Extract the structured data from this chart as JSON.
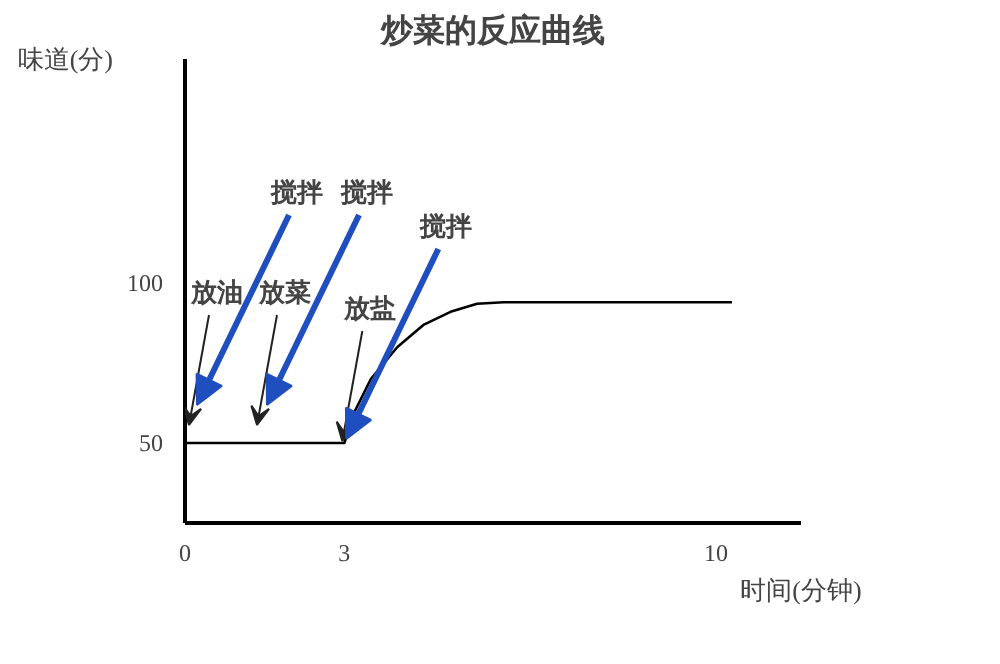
{
  "chart_data": {
    "type": "line",
    "title": "炒菜的反应曲线",
    "xlabel": "时间(分钟)",
    "ylabel": "味道(分)",
    "x": [
      0,
      3,
      3.2,
      3.5,
      4,
      4.5,
      5,
      5.5,
      6,
      10.3
    ],
    "values": [
      50,
      50,
      60,
      70,
      80,
      87,
      91,
      93.5,
      94,
      94
    ],
    "color": "#000000",
    "xlim": [
      0,
      11.6
    ],
    "ylim": [
      25,
      170
    ],
    "xticks": [
      0,
      3,
      10
    ],
    "yticks": [
      50,
      100
    ],
    "grid": false,
    "marker": "none",
    "line_style": "solid",
    "annotations": [
      "放油",
      "搅拌",
      "放菜",
      "搅拌",
      {
        "text": "放盐",
        "x": 3,
        "y": 50
      },
      {
        "text": "搅拌",
        "x": 3,
        "y": 50
      }
    ]
  }
}
